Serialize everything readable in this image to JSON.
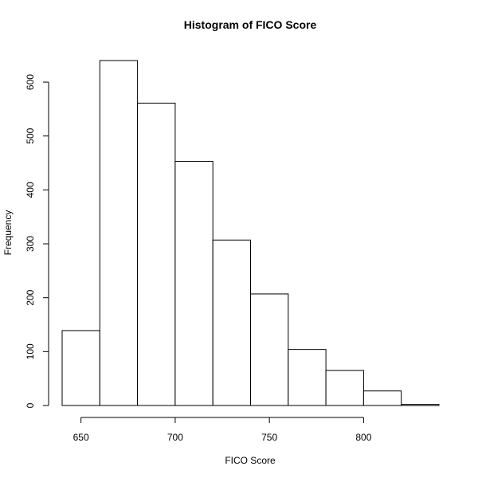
{
  "chart_data": {
    "type": "bar",
    "title": "Histogram of FICO Score",
    "xlabel": "FICO Score",
    "ylabel": "Frequency",
    "bins": [
      {
        "start": 640,
        "end": 660,
        "count": 139
      },
      {
        "start": 660,
        "end": 680,
        "count": 640
      },
      {
        "start": 680,
        "end": 700,
        "count": 561
      },
      {
        "start": 700,
        "end": 720,
        "count": 453
      },
      {
        "start": 720,
        "end": 740,
        "count": 307
      },
      {
        "start": 740,
        "end": 760,
        "count": 207
      },
      {
        "start": 760,
        "end": 780,
        "count": 104
      },
      {
        "start": 780,
        "end": 800,
        "count": 65
      },
      {
        "start": 800,
        "end": 820,
        "count": 27
      },
      {
        "start": 820,
        "end": 840,
        "count": 2
      }
    ],
    "xlim": [
      640,
      840
    ],
    "ylim": [
      0,
      640
    ],
    "x_ticks": [
      650,
      700,
      750,
      800
    ],
    "y_ticks": [
      0,
      100,
      200,
      300,
      400,
      500,
      600
    ],
    "grid": false,
    "bar_fill": "#ffffff",
    "bar_stroke": "#000000"
  }
}
